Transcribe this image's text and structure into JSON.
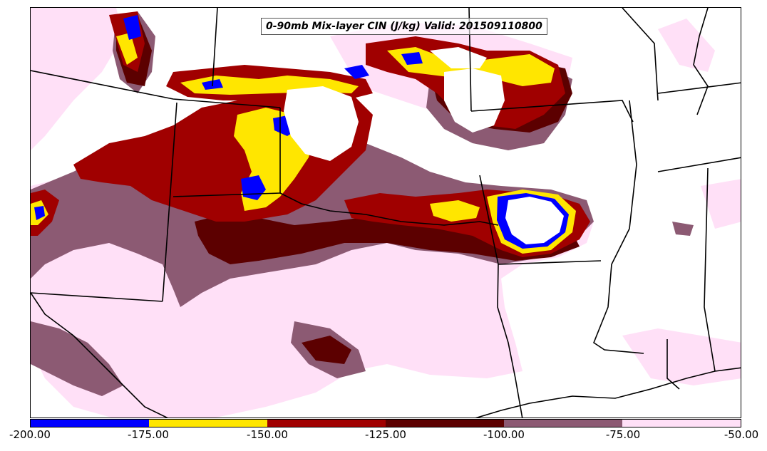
{
  "title": "0-90mb Mix-layer CIN (J/kg) Valid: 201509110800",
  "colorbar": {
    "ticks": [
      "-200.00",
      "-175.00",
      "-150.00",
      "-125.00",
      "-100.00",
      "-75.00",
      "-50.00"
    ],
    "bins": [
      {
        "range": "-200 to -175",
        "color": "#0000ff"
      },
      {
        "range": "-175 to -150",
        "color": "#ffe600"
      },
      {
        "range": "-150 to -125",
        "color": "#a00000"
      },
      {
        "range": "-125 to -100",
        "color": "#5c0000"
      },
      {
        "range": "-100 to -75",
        "color": "#8c5a73"
      },
      {
        "range": "-75 to -50",
        "color": "#ffe0f7"
      }
    ]
  },
  "map": {
    "background_color": "#ffffff",
    "boundary_color": "#000000"
  }
}
